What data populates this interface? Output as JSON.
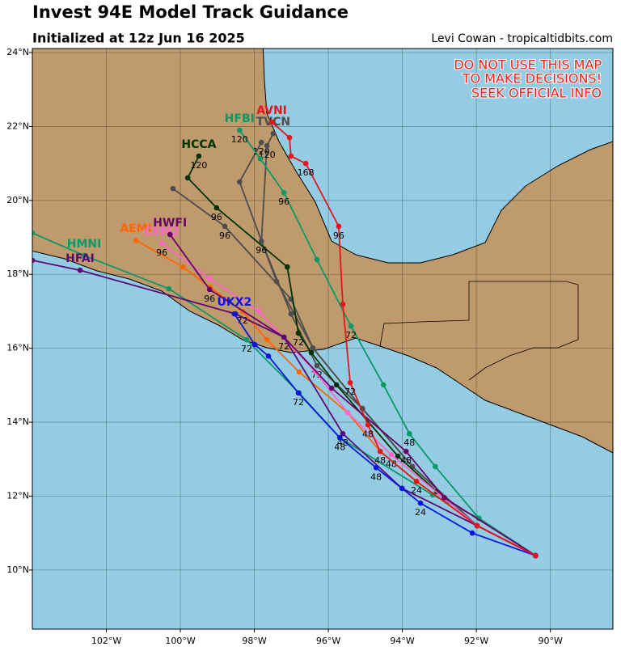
{
  "map": {
    "title": "Invest 94E Model Track Guidance",
    "subtitle": "Initialized at 12z Jun 16 2025",
    "credit": "Levi Cowan - tropicaltidbits.com",
    "warning": [
      "DO NOT USE THIS MAP",
      "TO MAKE DECISIONS!",
      "SEEK OFFICIAL INFO"
    ],
    "lonlim": [
      -104,
      -88.31
    ],
    "latlim": [
      8.4,
      24.11
    ],
    "lonticks": [
      {
        "value": -102,
        "label": "102°W"
      },
      {
        "value": -100,
        "label": "100°W"
      },
      {
        "value": -98,
        "label": "98°W"
      },
      {
        "value": -96,
        "label": "96°W"
      },
      {
        "value": -94,
        "label": "94°W"
      },
      {
        "value": -92,
        "label": "92°W"
      },
      {
        "value": -90,
        "label": "90°W"
      }
    ],
    "latticks": [
      {
        "value": 10,
        "label": "10°N"
      },
      {
        "value": 12,
        "label": "12°N"
      },
      {
        "value": 14,
        "label": "14°N"
      },
      {
        "value": 16,
        "label": "16°N"
      },
      {
        "value": 18,
        "label": "18°N"
      },
      {
        "value": 20,
        "label": "20°N"
      },
      {
        "value": 22,
        "label": "22°N"
      },
      {
        "value": 24,
        "label": "24°N"
      }
    ],
    "grid": true,
    "tracks": [
      {
        "color": "#4d4d4d",
        "points": [
          {
            "lon": -90.4,
            "lat": 10.39
          },
          {
            "lon": -91.98,
            "lat": 11.2
          },
          {
            "lon": -93.73,
            "lat": 12.8
          },
          {
            "lon": -95.08,
            "lat": 14.37
          },
          {
            "lon": -96.42,
            "lat": 16.01
          },
          {
            "lon": -97.4,
            "lat": 17.81
          },
          {
            "lon": -98.4,
            "lat": 20.5
          },
          {
            "lon": -97.81,
            "lat": 21.57,
            "hour": 120
          }
        ]
      },
      {
        "color": "#4d4d4d",
        "points": [
          {
            "lon": -90.4,
            "lat": 10.39
          },
          {
            "lon": -91.98,
            "lat": 11.2
          },
          {
            "lon": -93.73,
            "lat": 12.8
          },
          {
            "lon": -95.08,
            "lat": 14.37
          },
          {
            "lon": -96.42,
            "lat": 16.01
          },
          {
            "lon": -97.01,
            "lat": 17.33
          },
          {
            "lon": -98.8,
            "lat": 19.3,
            "hour": 96
          },
          {
            "lon": -100.2,
            "lat": 20.32
          }
        ]
      },
      {
        "name": "TVCN",
        "color": "#4d4d4d",
        "points": [
          {
            "lon": -90.4,
            "lat": 10.39
          },
          {
            "lon": -91.98,
            "lat": 11.2
          },
          {
            "lon": -93.73,
            "lat": 12.8
          },
          {
            "lon": -95.08,
            "lat": 14.37
          },
          {
            "lon": -96.31,
            "lat": 15.53,
            "hour": 72
          },
          {
            "lon": -97.01,
            "lat": 16.93
          },
          {
            "lon": -97.81,
            "lat": 18.9,
            "hour": 96
          },
          {
            "lon": -97.66,
            "lat": 21.48,
            "hour": 120
          },
          {
            "lon": -97.49,
            "lat": 21.81
          }
        ]
      },
      {
        "name": "HCCA",
        "color": "#003300",
        "points": [
          {
            "lon": -90.4,
            "lat": 10.39
          },
          {
            "lon": -91.98,
            "lat": 11.2
          },
          {
            "lon": -93.07,
            "lat": 12.12
          },
          {
            "lon": -94.12,
            "lat": 13.08
          },
          {
            "lon": -95.78,
            "lat": 15.01
          },
          {
            "lon": -96.46,
            "lat": 15.88
          },
          {
            "lon": -96.81,
            "lat": 16.41,
            "hour": 72
          },
          {
            "lon": -97.11,
            "lat": 18.2
          },
          {
            "lon": -99.02,
            "lat": 19.8,
            "hour": 96
          },
          {
            "lon": -99.8,
            "lat": 20.61
          },
          {
            "lon": -99.5,
            "lat": 21.2,
            "hour": 120
          }
        ]
      },
      {
        "name": "HMNI",
        "color": "#0a9966",
        "points": [
          {
            "lon": -90.4,
            "lat": 10.39
          },
          {
            "lon": -91.93,
            "lat": 11.4
          },
          {
            "lon": -93.18,
            "lat": 12.03
          },
          {
            "lon": -95.69,
            "lat": 13.58,
            "hour": 48
          },
          {
            "lon": -96.79,
            "lat": 14.79
          },
          {
            "lon": -98.21,
            "lat": 16.23,
            "hour": 72
          },
          {
            "lon": -100.31,
            "lat": 17.61
          },
          {
            "lon": -102.6,
            "lat": 18.51
          },
          {
            "lon": -104.0,
            "lat": 19.12
          }
        ]
      },
      {
        "name": "HFBI",
        "color": "#0a9966",
        "points": [
          {
            "lon": -90.4,
            "lat": 10.39
          },
          {
            "lon": -91.93,
            "lat": 11.4
          },
          {
            "lon": -93.11,
            "lat": 12.8
          },
          {
            "lon": -93.81,
            "lat": 13.69,
            "hour": 48
          },
          {
            "lon": -94.51,
            "lat": 15.01
          },
          {
            "lon": -95.39,
            "lat": 16.6,
            "hour": 72
          },
          {
            "lon": -96.31,
            "lat": 18.4
          },
          {
            "lon": -97.2,
            "lat": 20.21,
            "hour": 96
          },
          {
            "lon": -97.84,
            "lat": 21.13
          },
          {
            "lon": -98.4,
            "lat": 21.9,
            "hour": 120
          }
        ]
      },
      {
        "name": "AEMI",
        "color": "#ff6600",
        "points": [
          {
            "lon": -90.4,
            "lat": 10.39
          },
          {
            "lon": -91.98,
            "lat": 11.2
          },
          {
            "lon": -93.62,
            "lat": 12.4
          },
          {
            "lon": -94.6,
            "lat": 13.21,
            "hour": 48
          },
          {
            "lon": -95.48,
            "lat": 14.26
          },
          {
            "lon": -96.79,
            "lat": 15.36
          },
          {
            "lon": -97.66,
            "lat": 16.23
          },
          {
            "lon": -98.32,
            "lat": 17.0,
            "hour": 72
          },
          {
            "lon": -99.19,
            "lat": 17.65
          },
          {
            "lon": -99.93,
            "lat": 18.2
          },
          {
            "lon": -101.2,
            "lat": 18.92
          }
        ]
      },
      {
        "name": "CEM2",
        "color": "#ff66cc",
        "points": [
          {
            "lon": -90.4,
            "lat": 10.39
          },
          {
            "lon": -91.98,
            "lat": 11.2
          },
          {
            "lon": -94.3,
            "lat": 13.12,
            "hour": 48
          },
          {
            "lon": -95.48,
            "lat": 14.26
          },
          {
            "lon": -96.35,
            "lat": 15.36
          },
          {
            "lon": -97.88,
            "lat": 17.0
          },
          {
            "lon": -99.21,
            "lat": 17.89
          },
          {
            "lon": -100.5,
            "lat": 18.84,
            "hour": 96
          }
        ]
      },
      {
        "name": "HWFI",
        "color": "#6b006b",
        "points": [
          {
            "lon": -90.4,
            "lat": 10.39
          },
          {
            "lon": -92.87,
            "lat": 11.96
          },
          {
            "lon": -93.9,
            "lat": 13.21,
            "hour": 48
          },
          {
            "lon": -95.91,
            "lat": 14.92
          },
          {
            "lon": -97.2,
            "lat": 16.3,
            "hour": 72
          },
          {
            "lon": -99.21,
            "lat": 17.59,
            "hour": 96
          },
          {
            "lon": -100.28,
            "lat": 19.08
          }
        ]
      },
      {
        "name": "HFAI",
        "color": "#5c0a73",
        "points": [
          {
            "lon": -90.4,
            "lat": 10.39
          },
          {
            "lon": -91.98,
            "lat": 11.2
          },
          {
            "lon": -94.01,
            "lat": 12.21
          },
          {
            "lon": -95.61,
            "lat": 13.69,
            "hour": 48
          },
          {
            "lon": -97.2,
            "lat": 16.3
          },
          {
            "lon": -98.51,
            "lat": 16.93
          },
          {
            "lon": -102.71,
            "lat": 18.11
          },
          {
            "lon": -104.0,
            "lat": 18.38
          }
        ]
      },
      {
        "name": "UKX2",
        "color": "#0a14e0",
        "points": [
          {
            "lon": -90.4,
            "lat": 10.39
          },
          {
            "lon": -92.11,
            "lat": 11.0
          },
          {
            "lon": -93.51,
            "lat": 11.81,
            "hour": 24
          },
          {
            "lon": -94.01,
            "lat": 12.21
          },
          {
            "lon": -94.71,
            "lat": 12.77,
            "hour": 48
          },
          {
            "lon": -95.69,
            "lat": 13.58
          },
          {
            "lon": -96.81,
            "lat": 14.79,
            "hour": 72
          },
          {
            "lon": -97.62,
            "lat": 15.79
          },
          {
            "lon": -97.99,
            "lat": 16.1
          },
          {
            "lon": -98.54,
            "lat": 16.93
          }
        ]
      },
      {
        "name": "AVNI",
        "color": "#e8141c",
        "points": [
          {
            "lon": -90.4,
            "lat": 10.39
          },
          {
            "lon": -91.98,
            "lat": 11.2
          },
          {
            "lon": -93.62,
            "lat": 12.4,
            "hour": 24
          },
          {
            "lon": -94.6,
            "lat": 13.21
          },
          {
            "lon": -94.93,
            "lat": 13.93,
            "hour": 48
          },
          {
            "lon": -95.41,
            "lat": 15.07,
            "hour": 72
          },
          {
            "lon": -95.61,
            "lat": 17.19
          },
          {
            "lon": -95.72,
            "lat": 19.3,
            "hour": 96
          },
          {
            "lon": -96.61,
            "lat": 21.0,
            "hour": 168
          },
          {
            "lon": -97.01,
            "lat": 21.2
          },
          {
            "lon": -97.05,
            "lat": 21.7
          },
          {
            "lon": -97.53,
            "lat": 22.12
          }
        ]
      }
    ]
  }
}
